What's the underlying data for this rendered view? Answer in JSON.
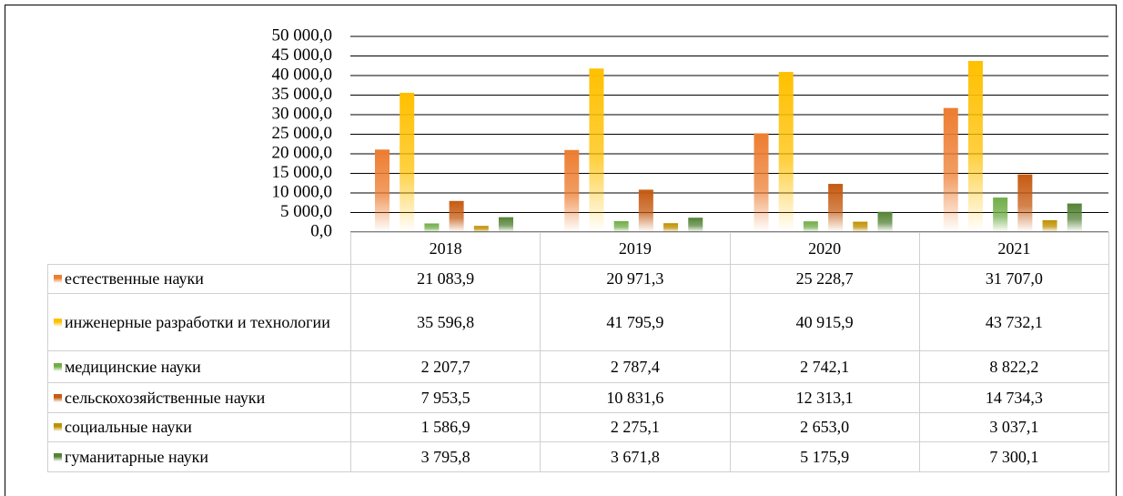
{
  "chart_data": {
    "type": "bar",
    "categories": [
      "2018",
      "2019",
      "2020",
      "2021"
    ],
    "series": [
      {
        "name": "естественные науки",
        "color": "#ED7D31",
        "values": [
          21083.9,
          20971.3,
          25228.7,
          31707.0
        ],
        "value_labels": [
          "21 083,9",
          "20 971,3",
          "25 228,7",
          "31 707,0"
        ]
      },
      {
        "name": "инженерные разработки и технологии",
        "color": "#FFC000",
        "values": [
          35596.8,
          41795.9,
          40915.9,
          43732.1
        ],
        "value_labels": [
          "35 596,8",
          "41 795,9",
          "40 915,9",
          "43 732,1"
        ]
      },
      {
        "name": "медицинские науки",
        "color": "#70AD47",
        "values": [
          2207.7,
          2787.4,
          2742.1,
          8822.2
        ],
        "value_labels": [
          "2 207,7",
          "2 787,4",
          "2 742,1",
          "8 822,2"
        ]
      },
      {
        "name": "сельскохозяйственные науки",
        "color": "#C55A11",
        "values": [
          7953.5,
          10831.6,
          12313.1,
          14734.3
        ],
        "value_labels": [
          "7 953,5",
          "10 831,6",
          "12 313,1",
          "14 734,3"
        ]
      },
      {
        "name": "социальные науки",
        "color": "#BF9000",
        "values": [
          1586.9,
          2275.1,
          2653.0,
          3037.1
        ],
        "value_labels": [
          "1 586,9",
          "2 275,1",
          "2 653,0",
          "3 037,1"
        ]
      },
      {
        "name": "гуманитарные науки",
        "color": "#548235",
        "values": [
          3795.8,
          3671.8,
          5175.9,
          7300.1
        ],
        "value_labels": [
          "3 795,8",
          "3 671,8",
          "5 175,9",
          "7 300,1"
        ]
      }
    ],
    "ylim": [
      0,
      50000
    ],
    "yticks": [
      {
        "value": 0,
        "label": "0,0"
      },
      {
        "value": 5000,
        "label": "5 000,0"
      },
      {
        "value": 10000,
        "label": "10 000,0"
      },
      {
        "value": 15000,
        "label": "15 000,0"
      },
      {
        "value": 20000,
        "label": "20 000,0"
      },
      {
        "value": 25000,
        "label": "25 000,0"
      },
      {
        "value": 30000,
        "label": "30 000,0"
      },
      {
        "value": 35000,
        "label": "35 000,0"
      },
      {
        "value": 40000,
        "label": "40 000,0"
      },
      {
        "value": 45000,
        "label": "45 000,0"
      },
      {
        "value": 50000,
        "label": "50 000,0"
      }
    ],
    "grid": true
  }
}
